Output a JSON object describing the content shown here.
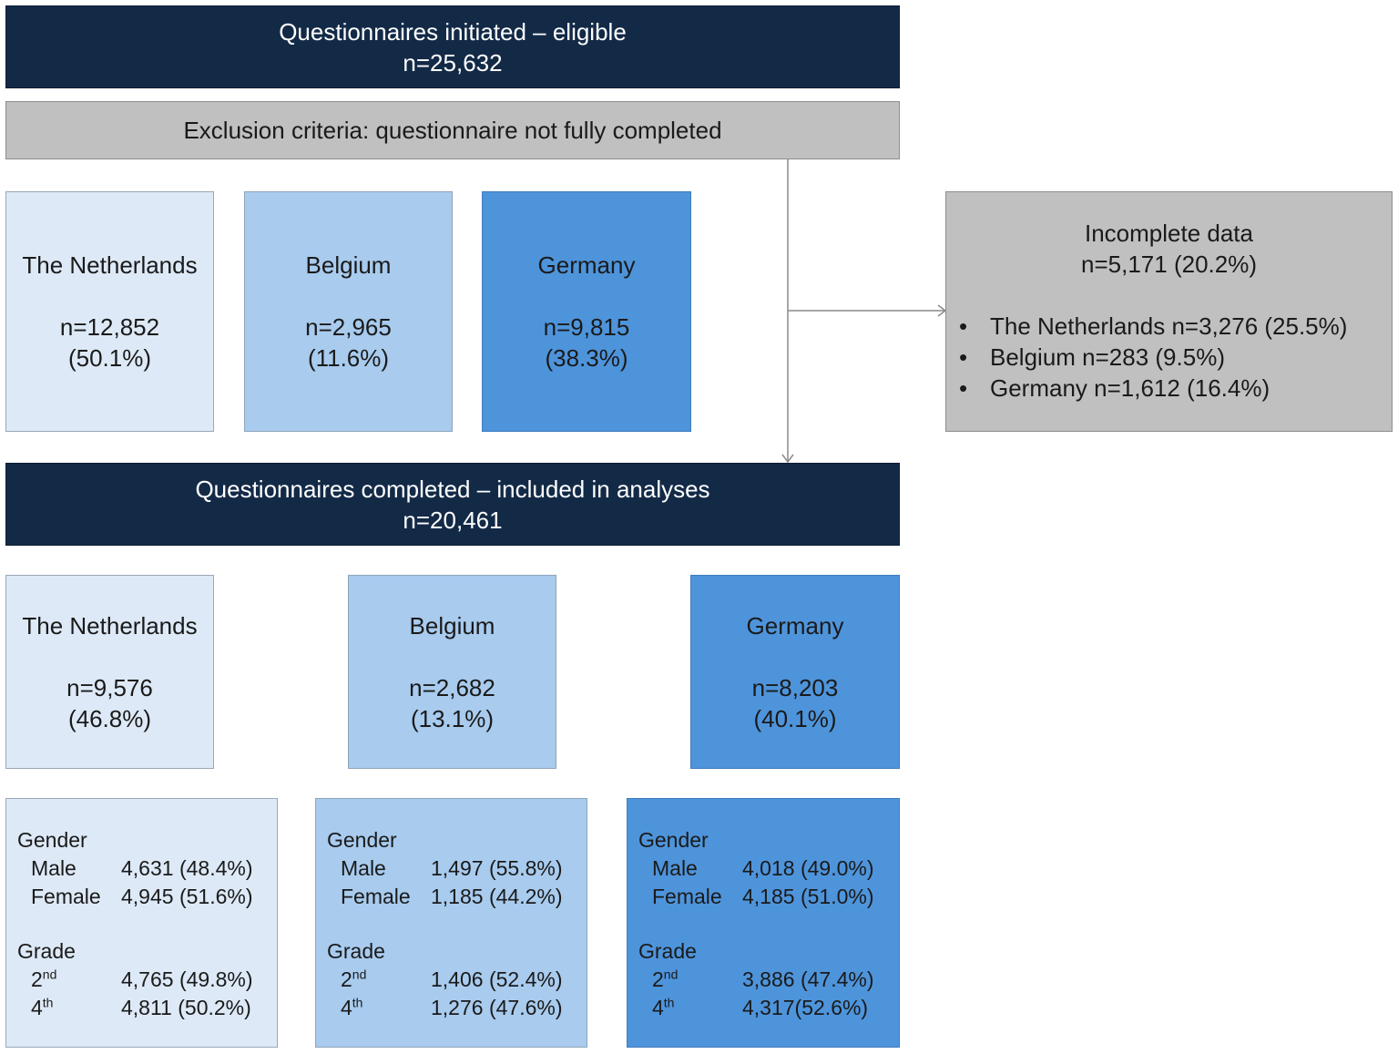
{
  "top": {
    "title": "Questionnaires initiated – eligible",
    "n": "n=25,632"
  },
  "exclusion": {
    "label": "Exclusion criteria: questionnaire not fully completed"
  },
  "initiated_countries": [
    {
      "name": "The Netherlands",
      "n": "n=12,852",
      "pct": "(50.1%)"
    },
    {
      "name": "Belgium",
      "n": "n=2,965",
      "pct": "(11.6%)"
    },
    {
      "name": "Germany",
      "n": "n=9,815",
      "pct": "(38.3%)"
    }
  ],
  "incomplete": {
    "title": "Incomplete data",
    "n": "n=5,171 (20.2%)",
    "items": [
      "The Netherlands n=3,276 (25.5%)",
      "Belgium n=283 (9.5%)",
      "Germany n=1,612 (16.4%)"
    ]
  },
  "completed": {
    "title": "Questionnaires completed – included in analyses",
    "n": "n=20,461"
  },
  "completed_countries": [
    {
      "name": "The Netherlands",
      "n": "n=9,576",
      "pct": "(46.8%)"
    },
    {
      "name": "Belgium",
      "n": "n=2,682",
      "pct": "(13.1%)"
    },
    {
      "name": "Germany",
      "n": "n=8,203",
      "pct": "(40.1%)"
    }
  ],
  "demographics": [
    {
      "gender_label": "Gender",
      "male_label": "Male",
      "male_val": "4,631 (48.4%)",
      "female_label": "Female",
      "female_val": "4,945 (51.6%)",
      "grade_label": "Grade",
      "g2_num": "2",
      "g2_sup": "nd",
      "g2_val": "4,765 (49.8%)",
      "g4_num": "4",
      "g4_sup": "th",
      "g4_val": "4,811 (50.2%)"
    },
    {
      "gender_label": "Gender",
      "male_label": "Male",
      "male_val": "1,497 (55.8%)",
      "female_label": "Female",
      "female_val": "1,185 (44.2%)",
      "grade_label": "Grade",
      "g2_num": "2",
      "g2_sup": "nd",
      "g2_val": "1,406 (52.4%)",
      "g4_num": "4",
      "g4_sup": "th",
      "g4_val": "1,276 (47.6%)"
    },
    {
      "gender_label": "Gender",
      "male_label": "Male",
      "male_val": "4,018 (49.0%)",
      "female_label": "Female",
      "female_val": "4,185 (51.0%)",
      "grade_label": "Grade",
      "g2_num": "2",
      "g2_sup": "nd",
      "g2_val": "3,886 (47.4%)",
      "g4_num": "4",
      "g4_sup": "th",
      "g4_val": "4,317(52.6%)"
    }
  ],
  "colors": {
    "navy": "#132a47",
    "gray": "#c0c0c0",
    "netherlands": "#dde9f6",
    "belgium": "#a8cbee",
    "germany": "#4e94db"
  }
}
